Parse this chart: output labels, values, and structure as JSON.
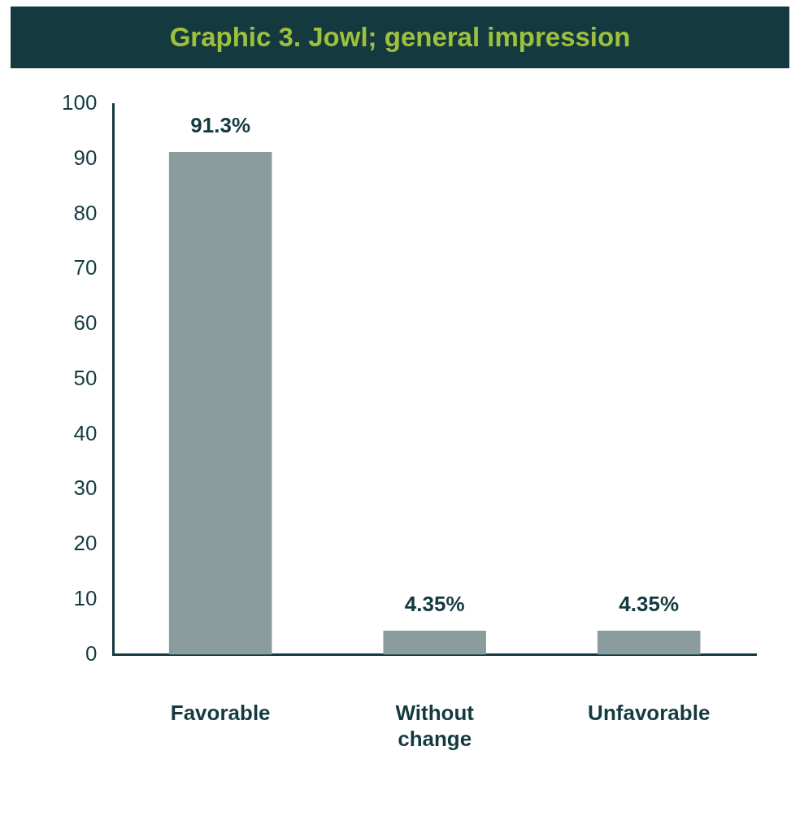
{
  "chart_data": {
    "type": "bar",
    "title": "Graphic 3. Jowl; general impression",
    "categories": [
      "Favorable",
      "Without change",
      "Unfavorable"
    ],
    "values": [
      91.3,
      4.35,
      4.35
    ],
    "color": "#8a9c9e",
    "value_labels": [
      "91.3%",
      "4.35%",
      "4.35%"
    ],
    "ylim": [
      0,
      100
    ],
    "yticks": [
      0,
      10,
      20,
      30,
      40,
      50,
      60,
      70,
      80,
      90,
      100
    ],
    "grid": false,
    "legend": false
  }
}
